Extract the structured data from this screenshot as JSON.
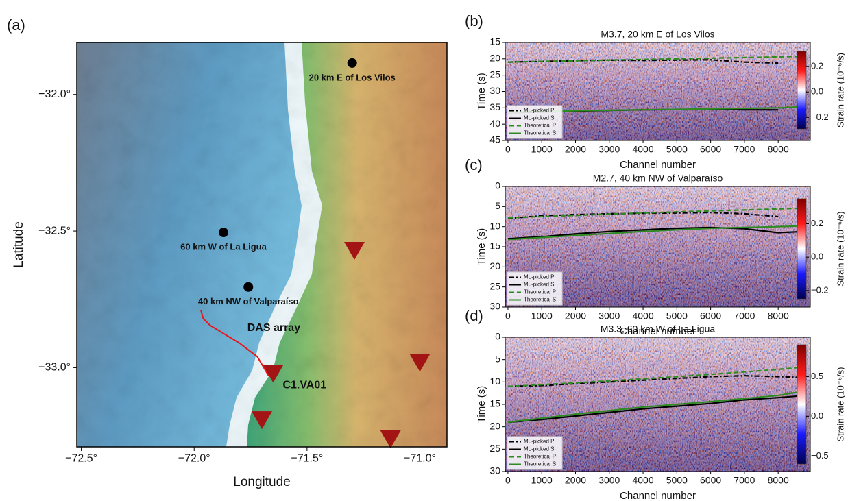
{
  "chart_data": [
    {
      "type": "map",
      "panel": "(a)",
      "xlabel": "Longitude",
      "ylabel": "Latitude",
      "xlim": [
        -72.52,
        -70.88
      ],
      "ylim": [
        -33.29,
        -31.81
      ],
      "xticks": [
        {
          "value": -72.5,
          "label": "−72.5°"
        },
        {
          "value": -72.0,
          "label": "−72.0°"
        },
        {
          "value": -71.5,
          "label": "−71.5°"
        },
        {
          "value": -71.0,
          "label": "−71.0°"
        }
      ],
      "yticks": [
        {
          "value": -33.0,
          "label": "−33.0°"
        },
        {
          "value": -32.5,
          "label": "−32.5°"
        },
        {
          "value": -32.0,
          "label": "−32.0°"
        }
      ],
      "events": [
        {
          "label": "20 km E of Los Vilos",
          "x": -71.3,
          "y": -31.885
        },
        {
          "label": "60 km W of La Ligua",
          "x": -71.87,
          "y": -32.505
        },
        {
          "label": "40 km NW of Valparaíso",
          "x": -71.76,
          "y": -32.705
        }
      ],
      "event_color": "#000000",
      "stations": [
        {
          "x": -71.29,
          "y": -32.57
        },
        {
          "x": -71.0,
          "y": -32.98
        },
        {
          "x": -71.65,
          "y": -33.02,
          "label": "C1.VA01"
        },
        {
          "x": -71.7,
          "y": -33.19
        },
        {
          "x": -71.13,
          "y": -33.26
        }
      ],
      "station_color": "#a31515",
      "das": {
        "name": "DAS array",
        "color": "#e8141a",
        "x": [
          -71.97,
          -71.96,
          -71.93,
          -71.88,
          -71.8,
          -71.72,
          -71.67
        ],
        "y": [
          -32.79,
          -32.82,
          -32.845,
          -32.87,
          -32.91,
          -32.96,
          -33.03
        ]
      }
    },
    {
      "type": "heatmap",
      "panel": "(b)",
      "title": "M3.7, 20 km E of Los Vilos",
      "xlabel": "Channel number",
      "ylabel": "Time (s)",
      "xlim": [
        -80,
        8950
      ],
      "ylim": [
        45,
        15
      ],
      "xticks": [
        0,
        1000,
        2000,
        3000,
        4000,
        5000,
        6000,
        7000,
        8000
      ],
      "yticks": [
        15,
        20,
        25,
        30,
        35,
        40,
        45
      ],
      "colorbar": {
        "label": "Strain rate (10⁻⁶/s)",
        "clim": [
          -0.29,
          0.32
        ],
        "ticks": [
          0.2,
          {
            "value": 0,
            "label": "0.0"
          },
          {
            "value": -0.2,
            "label": "−0.2"
          }
        ]
      },
      "series": [
        {
          "name": "ML-picked P",
          "color": "#000000",
          "linestyle": "dashdot",
          "x": [
            0,
            1000,
            2000,
            3000,
            4000,
            5000,
            6000,
            7000,
            8000
          ],
          "values": [
            21.0,
            20.8,
            20.6,
            20.4,
            20.5,
            20.4,
            20.3,
            21.0,
            21.3
          ]
        },
        {
          "name": "ML-picked S",
          "color": "#000000",
          "linestyle": "solid",
          "x": [
            0,
            1000,
            2000,
            3000,
            4000,
            5000,
            6000,
            7000,
            8000
          ],
          "values": [
            36.5,
            36.3,
            36.0,
            35.8,
            35.6,
            35.5,
            35.4,
            35.6,
            35.6
          ]
        },
        {
          "name": "Theoretical P",
          "color": "#2e8b22",
          "linestyle": "dashed",
          "x": [
            0,
            2000,
            4000,
            6000,
            8000,
            8800
          ],
          "values": [
            21.0,
            20.6,
            20.2,
            19.8,
            19.4,
            19.2
          ]
        },
        {
          "name": "Theoretical S",
          "color": "#2e8b22",
          "linestyle": "solid",
          "x": [
            0,
            2000,
            4000,
            6000,
            8000,
            8800
          ],
          "values": [
            36.3,
            35.9,
            35.6,
            35.3,
            35.0,
            34.6
          ]
        }
      ]
    },
    {
      "type": "heatmap",
      "panel": "(c)",
      "title": "M2.7, 40 km NW of Valparaíso",
      "xlabel": "Channel number",
      "ylabel": "Time (s)",
      "xlim": [
        -80,
        8950
      ],
      "ylim": [
        30,
        0
      ],
      "xticks": [
        0,
        1000,
        2000,
        3000,
        4000,
        5000,
        6000,
        7000,
        8000
      ],
      "yticks": [
        0,
        5,
        10,
        15,
        20,
        25,
        30
      ],
      "colorbar": {
        "label": "Strain rate (10⁻⁶/s)",
        "clim": [
          -0.25,
          0.35
        ],
        "ticks": [
          0.2,
          {
            "value": 0,
            "label": "0.0"
          },
          {
            "value": -0.2,
            "label": "−0.2"
          }
        ]
      },
      "series": [
        {
          "name": "ML-picked P",
          "color": "#000000",
          "linestyle": "dashdot",
          "x": [
            0,
            500,
            1000,
            2000,
            3000,
            4000,
            5000,
            6000,
            7000,
            8000
          ],
          "values": [
            8.0,
            7.6,
            7.3,
            7.0,
            6.8,
            6.7,
            6.6,
            6.5,
            6.8,
            7.5
          ]
        },
        {
          "name": "ML-picked S",
          "color": "#000000",
          "linestyle": "solid",
          "x": [
            0,
            1000,
            2000,
            3000,
            4000,
            5000,
            6000,
            7000,
            8000,
            8800
          ],
          "values": [
            13.0,
            12.5,
            11.8,
            11.2,
            10.8,
            10.4,
            10.2,
            10.5,
            11.5,
            11.2
          ]
        },
        {
          "name": "Theoretical P",
          "color": "#2e8b22",
          "linestyle": "dashed",
          "x": [
            0,
            2000,
            4000,
            6000,
            8000,
            8800
          ],
          "values": [
            7.8,
            7.2,
            6.6,
            6.1,
            5.6,
            5.4
          ]
        },
        {
          "name": "Theoretical S",
          "color": "#2e8b22",
          "linestyle": "solid",
          "x": [
            0,
            2000,
            4000,
            6000,
            8000,
            8800
          ],
          "values": [
            13.2,
            12.2,
            11.2,
            10.4,
            10.0,
            9.8
          ]
        }
      ]
    },
    {
      "type": "heatmap",
      "panel": "(d)",
      "title": "M3.3, 60 km W of La Ligua",
      "xlabel": "Channel number",
      "ylabel": "Time (s)",
      "xlim": [
        -80,
        8950
      ],
      "ylim": [
        30,
        0
      ],
      "xticks": [
        0,
        1000,
        2000,
        3000,
        4000,
        5000,
        6000,
        7000,
        8000
      ],
      "yticks": [
        0,
        5,
        10,
        15,
        20,
        25,
        30
      ],
      "colorbar": {
        "label": "Strain rate (10⁻⁶/s)",
        "clim": [
          -0.6,
          0.9
        ],
        "ticks": [
          0.5,
          {
            "value": 0,
            "label": "0.0"
          },
          {
            "value": -0.5,
            "label": "−0.5"
          }
        ]
      },
      "series": [
        {
          "name": "ML-picked P",
          "color": "#000000",
          "linestyle": "dashdot",
          "x": [
            0,
            1000,
            2000,
            3000,
            4000,
            5000,
            6000,
            7000,
            8000,
            8800
          ],
          "values": [
            11.0,
            10.8,
            10.4,
            10.0,
            9.6,
            9.2,
            8.8,
            8.6,
            8.8,
            9.0
          ]
        },
        {
          "name": "ML-picked S",
          "color": "#000000",
          "linestyle": "solid",
          "x": [
            0,
            1000,
            2000,
            3000,
            4000,
            5000,
            6000,
            7000,
            8000,
            8800
          ],
          "values": [
            19.0,
            18.4,
            17.6,
            16.8,
            16.0,
            15.4,
            14.8,
            14.0,
            13.5,
            13.0
          ]
        },
        {
          "name": "Theoretical P",
          "color": "#2e8b22",
          "linestyle": "dashed",
          "x": [
            0,
            2000,
            4000,
            6000,
            8000,
            8800
          ],
          "values": [
            11.0,
            10.2,
            9.3,
            8.3,
            7.2,
            6.6
          ]
        },
        {
          "name": "Theoretical S",
          "color": "#2e8b22",
          "linestyle": "solid",
          "x": [
            0,
            2000,
            4000,
            6000,
            8000,
            8800
          ],
          "values": [
            19.0,
            17.2,
            15.6,
            14.4,
            13.0,
            12.0
          ]
        }
      ]
    }
  ]
}
